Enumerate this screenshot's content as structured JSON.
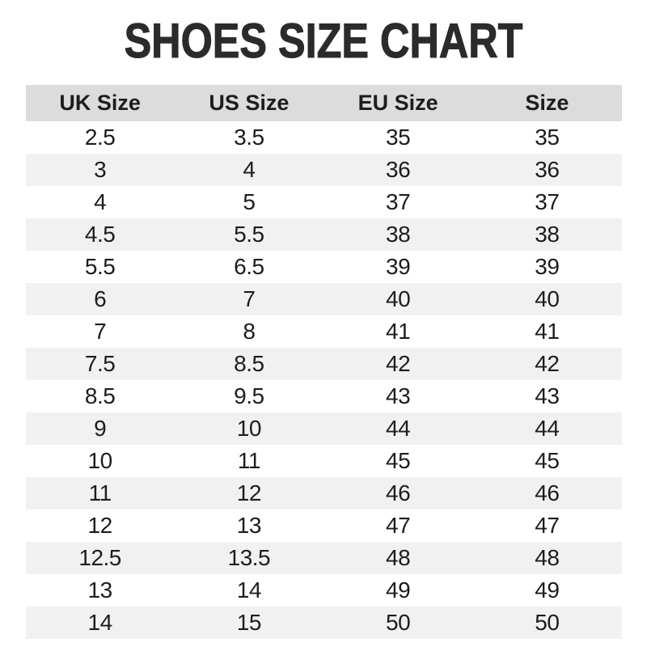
{
  "page": {
    "title": "SHOES SIZE CHART"
  },
  "colors": {
    "page_bg": "#ffffff",
    "title_text": "#2b2b2b",
    "header_bg": "#dcdcdc",
    "stripe_bg": "#f1f1f1",
    "cell_text": "#1d1d1d"
  },
  "chart_data": {
    "type": "table",
    "title": "SHOES SIZE CHART",
    "columns": [
      "UK Size",
      "US Size",
      "EU Size",
      "Size"
    ],
    "rows": [
      [
        "2.5",
        "3.5",
        "35",
        "35"
      ],
      [
        "3",
        "4",
        "36",
        "36"
      ],
      [
        "4",
        "5",
        "37",
        "37"
      ],
      [
        "4.5",
        "5.5",
        "38",
        "38"
      ],
      [
        "5.5",
        "6.5",
        "39",
        "39"
      ],
      [
        "6",
        "7",
        "40",
        "40"
      ],
      [
        "7",
        "8",
        "41",
        "41"
      ],
      [
        "7.5",
        "8.5",
        "42",
        "42"
      ],
      [
        "8.5",
        "9.5",
        "43",
        "43"
      ],
      [
        "9",
        "10",
        "44",
        "44"
      ],
      [
        "10",
        "11",
        "45",
        "45"
      ],
      [
        "11",
        "12",
        "46",
        "46"
      ],
      [
        "12",
        "13",
        "47",
        "47"
      ],
      [
        "12.5",
        "13.5",
        "48",
        "48"
      ],
      [
        "13",
        "14",
        "49",
        "49"
      ],
      [
        "14",
        "15",
        "50",
        "50"
      ]
    ],
    "layout": {
      "header_shaded": true,
      "striped": true,
      "stripe_pattern": "even data rows shaded",
      "cell_alignment": "center"
    }
  }
}
